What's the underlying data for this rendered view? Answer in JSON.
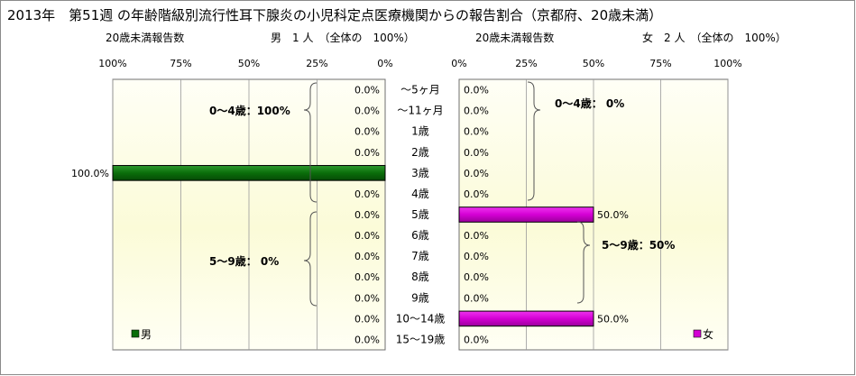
{
  "title": "2013年　第51週 の年齢階級別流行性耳下腺炎の小児科定点医療機関からの報告割合（京都府、20歳未満）",
  "colors": {
    "male": "#0a6e0a",
    "female": "#d400d4",
    "plot_fill_light": "#fffff2",
    "plot_fill_dark": "#fafad0",
    "frame": "#6f6f6f"
  },
  "chart_data": [
    {
      "type": "bar",
      "orientation": "horizontal",
      "direction": "right-to-left",
      "series": [
        {
          "name": "男",
          "values": [
            0,
            0,
            0,
            0,
            100,
            0,
            0,
            0,
            0,
            0,
            0,
            0,
            0
          ]
        }
      ],
      "data_labels": [
        "0.0%",
        "0.0%",
        "0.0%",
        "0.0%",
        "100.0%",
        "0.0%",
        "0.0%",
        "0.0%",
        "0.0%",
        "0.0%",
        "0.0%",
        "0.0%",
        "0.0%"
      ],
      "header_left": "20歳未満報告数",
      "header_right": "男　1 人　（全体の　100%）",
      "ticks": [
        "100%",
        "75%",
        "50%",
        "25%",
        "0%"
      ],
      "xlim": [
        0,
        100
      ],
      "legend": "男",
      "legend_position": "bottom-left",
      "brackets": [
        "0～4歳：100%",
        "5～9歳：  0%"
      ]
    },
    {
      "type": "bar",
      "orientation": "horizontal",
      "direction": "left-to-right",
      "series": [
        {
          "name": "女",
          "values": [
            0,
            0,
            0,
            0,
            0,
            0,
            50,
            0,
            0,
            0,
            0,
            50,
            0
          ]
        }
      ],
      "data_labels": [
        "0.0%",
        "0.0%",
        "0.0%",
        "0.0%",
        "0.0%",
        "0.0%",
        "50.0%",
        "0.0%",
        "0.0%",
        "0.0%",
        "0.0%",
        "50.0%",
        "0.0%"
      ],
      "header_left": "20歳未満報告数",
      "header_right": "女　2 人　（全体の　100%）",
      "ticks": [
        "0%",
        "25%",
        "50%",
        "75%",
        "100%"
      ],
      "xlim": [
        0,
        100
      ],
      "legend": "女",
      "legend_position": "bottom-right",
      "brackets": [
        "0～4歳：  0%",
        "5～9歳：50%"
      ]
    }
  ],
  "categories": [
    "～5ヶ月",
    "～11ヶ月",
    "1歳",
    "2歳",
    "3歳",
    "4歳",
    "5歳",
    "6歳",
    "7歳",
    "8歳",
    "9歳",
    "10～14歳",
    "15～19歳"
  ]
}
